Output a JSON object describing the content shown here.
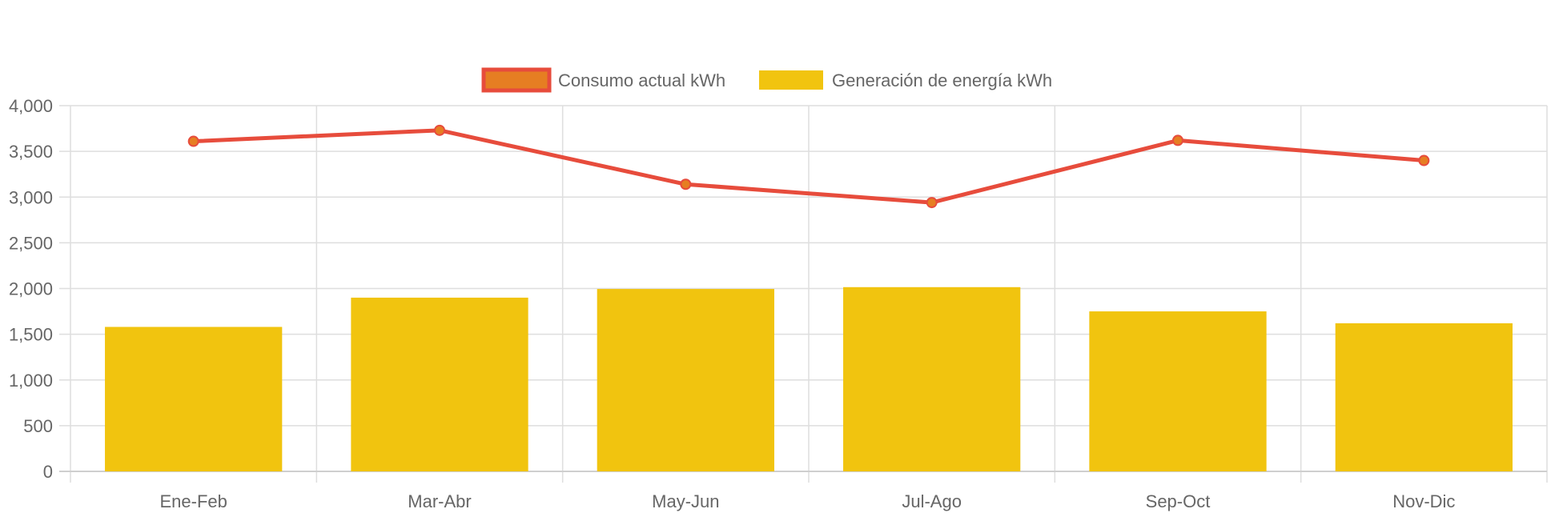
{
  "chart_data": {
    "type": "bar",
    "categories": [
      "Ene-Feb",
      "Mar-Abr",
      "May-Jun",
      "Jul-Ago",
      "Sep-Oct",
      "Nov-Dic"
    ],
    "series": [
      {
        "name": "Consumo actual kWh",
        "type": "line",
        "values": [
          3610,
          3730,
          3140,
          2940,
          3620,
          3400
        ],
        "color": "#e74c3c",
        "point_color": "#e67e22"
      },
      {
        "name": "Generación de energía kWh",
        "type": "bar",
        "values": [
          1580,
          1900,
          1995,
          2015,
          1750,
          1620
        ],
        "color": "#f1c40f"
      }
    ],
    "xlabel": "",
    "ylabel": "",
    "ylim": [
      0,
      4000
    ],
    "yticks": [
      "0",
      "500",
      "1,000",
      "1,500",
      "2,000",
      "2,500",
      "3,000",
      "3,500",
      "4,000"
    ],
    "grid": true,
    "legend_position": "top"
  }
}
